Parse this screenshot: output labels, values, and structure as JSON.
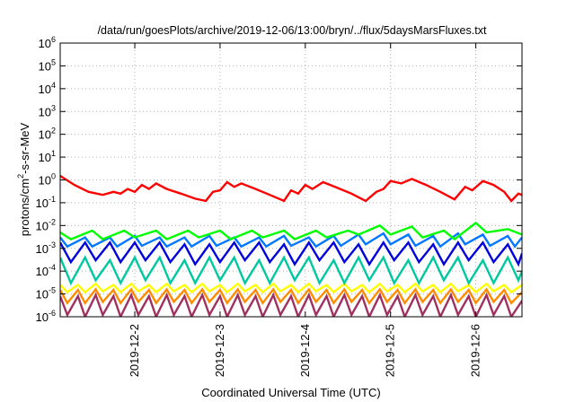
{
  "chart_data": {
    "type": "line",
    "title": "/data/run/goesPlots/archive/2019-12-06/13:00/bryn/../flux/5daysMarsFluxes.txt",
    "xlabel": "Coordinated Universal Time (UTC)",
    "ylabel": {
      "prefix": "protons/cm",
      "superscript": "2",
      "suffix": "-s-sr-MeV"
    },
    "x_type": "datetime",
    "xlim": [
      "2019-12-01T03:00",
      "2019-12-06T13:00"
    ],
    "x_ticks": [
      "2019-12-2",
      "2019-12-3",
      "2019-12-4",
      "2019-12-5",
      "2019-12-6"
    ],
    "x_tick_dates": [
      "2019-12-02T00:00",
      "2019-12-03T00:00",
      "2019-12-04T00:00",
      "2019-12-05T00:00",
      "2019-12-06T00:00"
    ],
    "y_scale": "log",
    "ylim": [
      1e-06,
      1000000.0
    ],
    "y_ticks": [
      {
        "base": "10",
        "exp": "-6",
        "value": 1e-06
      },
      {
        "base": "10",
        "exp": "-5",
        "value": 1e-05
      },
      {
        "base": "10",
        "exp": "-4",
        "value": 0.0001
      },
      {
        "base": "10",
        "exp": "-3",
        "value": 0.001
      },
      {
        "base": "10",
        "exp": "-2",
        "value": 0.01
      },
      {
        "base": "10",
        "exp": "-1",
        "value": 0.1
      },
      {
        "base": "10",
        "exp": "0",
        "value": 1
      },
      {
        "base": "10",
        "exp": "1",
        "value": 10
      },
      {
        "base": "10",
        "exp": "2",
        "value": 100
      },
      {
        "base": "10",
        "exp": "3",
        "value": 1000
      },
      {
        "base": "10",
        "exp": "4",
        "value": 10000
      },
      {
        "base": "10",
        "exp": "5",
        "value": 100000
      },
      {
        "base": "10",
        "exp": "6",
        "value": 1000000
      }
    ],
    "grid": true,
    "legend": "none",
    "series": [
      {
        "color": "#ff0000",
        "x": [
          "2019-12-01T03:00",
          "2019-12-01T07:00",
          "2019-12-01T11:00",
          "2019-12-01T15:00",
          "2019-12-01T18:00",
          "2019-12-01T20:00",
          "2019-12-01T22:00",
          "2019-12-02T00:00",
          "2019-12-02T02:00",
          "2019-12-02T04:00",
          "2019-12-02T06:00",
          "2019-12-02T09:00",
          "2019-12-02T13:00",
          "2019-12-02T17:00",
          "2019-12-02T20:00",
          "2019-12-02T22:00",
          "2019-12-03T00:00",
          "2019-12-03T02:00",
          "2019-12-03T04:00",
          "2019-12-03T06:00",
          "2019-12-03T10:00",
          "2019-12-03T14:00",
          "2019-12-03T18:00",
          "2019-12-03T20:00",
          "2019-12-03T22:00",
          "2019-12-04T00:00",
          "2019-12-04T02:00",
          "2019-12-04T05:00",
          "2019-12-04T09:00",
          "2019-12-04T13:00",
          "2019-12-04T17:00",
          "2019-12-04T20:00",
          "2019-12-04T22:00",
          "2019-12-05T00:00",
          "2019-12-05T03:00",
          "2019-12-05T06:00",
          "2019-12-05T10:00",
          "2019-12-05T14:00",
          "2019-12-05T18:00",
          "2019-12-05T21:00",
          "2019-12-05T23:00",
          "2019-12-06T02:00",
          "2019-12-06T05:00",
          "2019-12-06T08:00",
          "2019-12-06T10:00",
          "2019-12-06T12:00",
          "2019-12-06T13:00"
        ],
        "y": [
          1.5,
          0.6,
          0.3,
          0.22,
          0.3,
          0.25,
          0.4,
          0.3,
          0.6,
          0.4,
          0.7,
          0.4,
          0.25,
          0.15,
          0.12,
          0.3,
          0.35,
          0.8,
          0.5,
          0.7,
          0.4,
          0.22,
          0.12,
          0.35,
          0.25,
          0.6,
          0.4,
          0.8,
          0.45,
          0.25,
          0.12,
          0.3,
          0.4,
          0.9,
          0.7,
          1.1,
          0.6,
          0.3,
          0.14,
          0.5,
          0.35,
          0.9,
          0.6,
          0.3,
          0.12,
          0.25,
          0.22
        ]
      },
      {
        "color": "#00ff00",
        "x": [
          "2019-12-01T03:00",
          "2019-12-01T06:00",
          "2019-12-01T12:00",
          "2019-12-01T15:00",
          "2019-12-01T21:00",
          "2019-12-02T00:00",
          "2019-12-02T06:00",
          "2019-12-02T09:00",
          "2019-12-02T15:00",
          "2019-12-02T18:00",
          "2019-12-03T00:00",
          "2019-12-03T03:00",
          "2019-12-03T09:00",
          "2019-12-03T12:00",
          "2019-12-03T18:00",
          "2019-12-03T21:00",
          "2019-12-04T03:00",
          "2019-12-04T06:00",
          "2019-12-04T12:00",
          "2019-12-04T15:00",
          "2019-12-04T21:00",
          "2019-12-05T00:00",
          "2019-12-05T06:00",
          "2019-12-05T09:00",
          "2019-12-05T15:00",
          "2019-12-05T18:00",
          "2019-12-06T00:00",
          "2019-12-06T03:00",
          "2019-12-06T09:00",
          "2019-12-06T13:00"
        ],
        "y": [
          0.005,
          0.0025,
          0.006,
          0.0025,
          0.006,
          0.003,
          0.006,
          0.0025,
          0.006,
          0.003,
          0.006,
          0.0025,
          0.006,
          0.003,
          0.006,
          0.0025,
          0.006,
          0.003,
          0.006,
          0.004,
          0.01,
          0.004,
          0.009,
          0.003,
          0.006,
          0.0025,
          0.013,
          0.005,
          0.007,
          0.004
        ]
      },
      {
        "color": "#0078ff",
        "x": [
          "2019-12-01T03:00",
          "2019-12-01T05:00",
          "2019-12-01T10:00",
          "2019-12-01T12:00",
          "2019-12-01T17:00",
          "2019-12-01T19:00",
          "2019-12-02T00:00",
          "2019-12-02T02:00",
          "2019-12-02T07:00",
          "2019-12-02T09:00",
          "2019-12-02T14:00",
          "2019-12-02T16:00",
          "2019-12-02T21:00",
          "2019-12-02T23:00",
          "2019-12-03T04:00",
          "2019-12-03T06:00",
          "2019-12-03T11:00",
          "2019-12-03T13:00",
          "2019-12-03T18:00",
          "2019-12-03T20:00",
          "2019-12-04T01:00",
          "2019-12-04T03:00",
          "2019-12-04T08:00",
          "2019-12-04T10:00",
          "2019-12-04T15:00",
          "2019-12-04T17:00",
          "2019-12-04T22:00",
          "2019-12-05T00:00",
          "2019-12-05T05:00",
          "2019-12-05T07:00",
          "2019-12-05T12:00",
          "2019-12-05T14:00",
          "2019-12-05T19:00",
          "2019-12-05T21:00",
          "2019-12-06T02:00",
          "2019-12-06T04:00",
          "2019-12-06T09:00",
          "2019-12-06T11:00",
          "2019-12-06T13:00"
        ],
        "y": [
          0.003,
          0.0012,
          0.003,
          0.0012,
          0.003,
          0.0012,
          0.0035,
          0.0013,
          0.003,
          0.0012,
          0.003,
          0.0012,
          0.0035,
          0.0013,
          0.003,
          0.0012,
          0.003,
          0.0012,
          0.0035,
          0.0013,
          0.003,
          0.0012,
          0.0035,
          0.0013,
          0.004,
          0.0015,
          0.0045,
          0.0015,
          0.004,
          0.0013,
          0.0035,
          0.0012,
          0.0045,
          0.0015,
          0.004,
          0.0013,
          0.0035,
          0.0012,
          0.003
        ]
      },
      {
        "color": "#0000dd",
        "x": [
          "2019-12-01T03:00",
          "2019-12-01T06:00",
          "2019-12-01T10:00",
          "2019-12-01T13:00",
          "2019-12-01T17:00",
          "2019-12-01T20:00",
          "2019-12-02T00:00",
          "2019-12-02T03:00",
          "2019-12-02T07:00",
          "2019-12-02T10:00",
          "2019-12-02T14:00",
          "2019-12-02T17:00",
          "2019-12-02T21:00",
          "2019-12-03T00:00",
          "2019-12-03T04:00",
          "2019-12-03T07:00",
          "2019-12-03T11:00",
          "2019-12-03T14:00",
          "2019-12-03T18:00",
          "2019-12-03T21:00",
          "2019-12-04T01:00",
          "2019-12-04T04:00",
          "2019-12-04T08:00",
          "2019-12-04T11:00",
          "2019-12-04T15:00",
          "2019-12-04T18:00",
          "2019-12-04T22:00",
          "2019-12-05T01:00",
          "2019-12-05T05:00",
          "2019-12-05T08:00",
          "2019-12-05T12:00",
          "2019-12-05T15:00",
          "2019-12-05T19:00",
          "2019-12-05T22:00",
          "2019-12-06T02:00",
          "2019-12-06T05:00",
          "2019-12-06T09:00",
          "2019-12-06T12:00",
          "2019-12-06T13:00"
        ],
        "y": [
          0.0018,
          0.00025,
          0.0018,
          0.0003,
          0.0018,
          0.00025,
          0.0018,
          0.0003,
          0.0018,
          0.00025,
          0.0015,
          0.0002,
          0.0015,
          0.00025,
          0.0018,
          0.0003,
          0.0018,
          0.00025,
          0.0015,
          0.0002,
          0.0018,
          0.0003,
          0.0018,
          0.00025,
          0.0015,
          0.0002,
          0.0018,
          0.0003,
          0.0018,
          0.00025,
          0.0015,
          0.0002,
          0.0018,
          0.0003,
          0.0018,
          0.00025,
          0.0015,
          0.0002,
          0.0006
        ]
      },
      {
        "color": "#00c8a0",
        "x": [
          "2019-12-01T03:00",
          "2019-12-01T06:00",
          "2019-12-01T10:00",
          "2019-12-01T13:00",
          "2019-12-01T17:00",
          "2019-12-01T20:00",
          "2019-12-02T00:00",
          "2019-12-02T03:00",
          "2019-12-02T07:00",
          "2019-12-02T10:00",
          "2019-12-02T14:00",
          "2019-12-02T17:00",
          "2019-12-02T21:00",
          "2019-12-03T00:00",
          "2019-12-03T04:00",
          "2019-12-03T07:00",
          "2019-12-03T11:00",
          "2019-12-03T14:00",
          "2019-12-03T18:00",
          "2019-12-03T21:00",
          "2019-12-04T01:00",
          "2019-12-04T04:00",
          "2019-12-04T08:00",
          "2019-12-04T11:00",
          "2019-12-04T15:00",
          "2019-12-04T18:00",
          "2019-12-04T22:00",
          "2019-12-05T01:00",
          "2019-12-05T05:00",
          "2019-12-05T08:00",
          "2019-12-05T12:00",
          "2019-12-05T15:00",
          "2019-12-05T19:00",
          "2019-12-05T22:00",
          "2019-12-06T02:00",
          "2019-12-06T05:00",
          "2019-12-06T09:00",
          "2019-12-06T12:00",
          "2019-12-06T13:00"
        ],
        "y": [
          0.0004,
          3e-05,
          0.0004,
          4e-05,
          0.0003,
          3e-05,
          0.0004,
          4e-05,
          0.0004,
          3e-05,
          0.0003,
          3e-05,
          0.0004,
          4e-05,
          0.0004,
          3e-05,
          0.0003,
          3e-05,
          0.0004,
          4e-05,
          0.0004,
          3e-05,
          0.0003,
          3e-05,
          0.0004,
          4e-05,
          0.0004,
          3e-05,
          0.0003,
          3e-05,
          0.0004,
          4e-05,
          0.0004,
          3e-05,
          0.0003,
          3e-05,
          0.0004,
          4e-05,
          0.0001
        ]
      },
      {
        "color": "#ffff00",
        "x": [
          "2019-12-01T03:00",
          "2019-12-01T05:00",
          "2019-12-01T08:00",
          "2019-12-01T10:00",
          "2019-12-01T13:00",
          "2019-12-01T15:00",
          "2019-12-01T18:00",
          "2019-12-01T20:00",
          "2019-12-01T23:00",
          "2019-12-02T01:00",
          "2019-12-02T04:00",
          "2019-12-02T06:00",
          "2019-12-02T09:00",
          "2019-12-02T11:00",
          "2019-12-02T14:00",
          "2019-12-02T16:00",
          "2019-12-02T19:00",
          "2019-12-02T21:00",
          "2019-12-03T00:00",
          "2019-12-03T02:00",
          "2019-12-03T05:00",
          "2019-12-03T07:00",
          "2019-12-03T10:00",
          "2019-12-03T12:00",
          "2019-12-03T15:00",
          "2019-12-03T17:00",
          "2019-12-03T20:00",
          "2019-12-03T22:00",
          "2019-12-04T01:00",
          "2019-12-04T03:00",
          "2019-12-04T06:00",
          "2019-12-04T08:00",
          "2019-12-04T11:00",
          "2019-12-04T13:00",
          "2019-12-04T16:00",
          "2019-12-04T18:00",
          "2019-12-04T21:00",
          "2019-12-04T23:00",
          "2019-12-05T02:00",
          "2019-12-05T04:00",
          "2019-12-05T07:00",
          "2019-12-05T09:00",
          "2019-12-05T12:00",
          "2019-12-05T14:00",
          "2019-12-05T17:00",
          "2019-12-05T19:00",
          "2019-12-05T22:00",
          "2019-12-06T00:00",
          "2019-12-06T03:00",
          "2019-12-06T05:00",
          "2019-12-06T08:00",
          "2019-12-06T10:00",
          "2019-12-06T13:00"
        ],
        "y": [
          2.5e-05,
          1.2e-05,
          2.5e-05,
          1.2e-05,
          2.8e-05,
          1.3e-05,
          2.5e-05,
          1.2e-05,
          2.8e-05,
          1.3e-05,
          2.5e-05,
          1.2e-05,
          2.8e-05,
          1.3e-05,
          2.5e-05,
          1.2e-05,
          2.8e-05,
          1.3e-05,
          2.5e-05,
          1.2e-05,
          2.8e-05,
          1.3e-05,
          2.5e-05,
          1.2e-05,
          2.8e-05,
          1.3e-05,
          2.5e-05,
          1.2e-05,
          2.8e-05,
          1.3e-05,
          2.5e-05,
          1.2e-05,
          2.8e-05,
          1.3e-05,
          2.5e-05,
          1.2e-05,
          2.8e-05,
          1.3e-05,
          2.5e-05,
          1.2e-05,
          2.8e-05,
          1.3e-05,
          2.5e-05,
          1.2e-05,
          2.8e-05,
          1.3e-05,
          2.5e-05,
          1.2e-05,
          2.8e-05,
          1.3e-05,
          2.5e-05,
          1.2e-05,
          2.5e-05
        ]
      },
      {
        "color": "#ff8c00",
        "x": [
          "2019-12-01T03:00",
          "2019-12-01T05:00",
          "2019-12-01T08:00",
          "2019-12-01T10:00",
          "2019-12-01T13:00",
          "2019-12-01T15:00",
          "2019-12-01T18:00",
          "2019-12-01T20:00",
          "2019-12-01T23:00",
          "2019-12-02T01:00",
          "2019-12-02T04:00",
          "2019-12-02T06:00",
          "2019-12-02T09:00",
          "2019-12-02T11:00",
          "2019-12-02T14:00",
          "2019-12-02T16:00",
          "2019-12-02T19:00",
          "2019-12-02T21:00",
          "2019-12-03T00:00",
          "2019-12-03T02:00",
          "2019-12-03T05:00",
          "2019-12-03T07:00",
          "2019-12-03T10:00",
          "2019-12-03T12:00",
          "2019-12-03T15:00",
          "2019-12-03T17:00",
          "2019-12-03T20:00",
          "2019-12-03T22:00",
          "2019-12-04T01:00",
          "2019-12-04T03:00",
          "2019-12-04T06:00",
          "2019-12-04T08:00",
          "2019-12-04T11:00",
          "2019-12-04T13:00",
          "2019-12-04T16:00",
          "2019-12-04T18:00",
          "2019-12-04T21:00",
          "2019-12-04T23:00",
          "2019-12-05T02:00",
          "2019-12-05T04:00",
          "2019-12-05T07:00",
          "2019-12-05T09:00",
          "2019-12-05T12:00",
          "2019-12-05T14:00",
          "2019-12-05T17:00",
          "2019-12-05T19:00",
          "2019-12-05T22:00",
          "2019-12-06T00:00",
          "2019-12-06T03:00",
          "2019-12-06T05:00",
          "2019-12-06T08:00",
          "2019-12-06T10:00",
          "2019-12-06T13:00"
        ],
        "y": [
          1.5e-05,
          4e-06,
          1.5e-05,
          4e-06,
          1.6e-05,
          4.5e-06,
          1.5e-05,
          4e-06,
          1.6e-05,
          4.5e-06,
          1.5e-05,
          4e-06,
          1.6e-05,
          4.5e-06,
          1.5e-05,
          4e-06,
          1.6e-05,
          4.5e-06,
          1.5e-05,
          4e-06,
          1.6e-05,
          4.5e-06,
          1.5e-05,
          4e-06,
          1.6e-05,
          4.5e-06,
          1.5e-05,
          4e-06,
          1.6e-05,
          4.5e-06,
          1.5e-05,
          4e-06,
          1.6e-05,
          4.5e-06,
          1.5e-05,
          4e-06,
          1.6e-05,
          4.5e-06,
          1.5e-05,
          4e-06,
          1.6e-05,
          4.5e-06,
          1.5e-05,
          4e-06,
          1.6e-05,
          4.5e-06,
          1.5e-05,
          4e-06,
          1.6e-05,
          4.5e-06,
          1.5e-05,
          4e-06,
          1.2e-05
        ]
      },
      {
        "color": "#a03060",
        "x": [
          "2019-12-01T03:00",
          "2019-12-01T05:00",
          "2019-12-01T08:00",
          "2019-12-01T10:00",
          "2019-12-01T13:00",
          "2019-12-01T15:00",
          "2019-12-01T18:00",
          "2019-12-01T20:00",
          "2019-12-01T23:00",
          "2019-12-02T01:00",
          "2019-12-02T04:00",
          "2019-12-02T06:00",
          "2019-12-02T09:00",
          "2019-12-02T11:00",
          "2019-12-02T14:00",
          "2019-12-02T16:00",
          "2019-12-02T19:00",
          "2019-12-02T21:00",
          "2019-12-03T00:00",
          "2019-12-03T02:00",
          "2019-12-03T05:00",
          "2019-12-03T07:00",
          "2019-12-03T10:00",
          "2019-12-03T12:00",
          "2019-12-03T15:00",
          "2019-12-03T17:00",
          "2019-12-03T20:00",
          "2019-12-03T22:00",
          "2019-12-04T01:00",
          "2019-12-04T03:00",
          "2019-12-04T06:00",
          "2019-12-04T08:00",
          "2019-12-04T11:00",
          "2019-12-04T13:00",
          "2019-12-04T16:00",
          "2019-12-04T18:00",
          "2019-12-04T21:00",
          "2019-12-04T23:00",
          "2019-12-05T02:00",
          "2019-12-05T04:00",
          "2019-12-05T07:00",
          "2019-12-05T09:00",
          "2019-12-05T12:00",
          "2019-12-05T14:00",
          "2019-12-05T17:00",
          "2019-12-05T19:00",
          "2019-12-05T22:00",
          "2019-12-06T00:00",
          "2019-12-06T03:00",
          "2019-12-06T05:00",
          "2019-12-06T08:00",
          "2019-12-06T10:00",
          "2019-12-06T13:00"
        ],
        "y": [
          8e-06,
          1.2e-06,
          8e-06,
          1e-06,
          9e-06,
          1.2e-06,
          8e-06,
          1e-06,
          9e-06,
          1.2e-06,
          8e-06,
          1e-06,
          9e-06,
          1.2e-06,
          8e-06,
          1e-06,
          9e-06,
          1.2e-06,
          8e-06,
          1e-06,
          9e-06,
          1.2e-06,
          8e-06,
          1e-06,
          9e-06,
          1.2e-06,
          8e-06,
          1e-06,
          9e-06,
          1.2e-06,
          8e-06,
          1e-06,
          9e-06,
          1.2e-06,
          8e-06,
          1e-06,
          9e-06,
          1.2e-06,
          8e-06,
          1e-06,
          9e-06,
          1.2e-06,
          8e-06,
          1e-06,
          9e-06,
          1.2e-06,
          8e-06,
          1e-06,
          9e-06,
          1.2e-06,
          8e-06,
          1e-06,
          5e-06
        ]
      }
    ]
  }
}
